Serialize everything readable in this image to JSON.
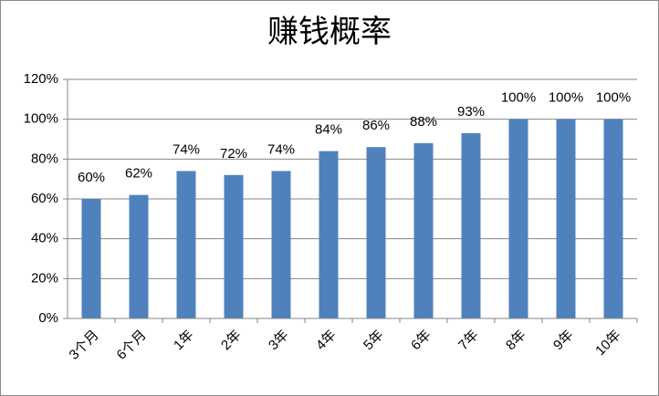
{
  "chart_data": {
    "type": "bar",
    "title": "赚钱概率",
    "categories": [
      "3个月",
      "6个月",
      "1年",
      "2年",
      "3年",
      "4年",
      "5年",
      "6年",
      "7年",
      "8年",
      "9年",
      "10年"
    ],
    "values": [
      60,
      62,
      74,
      72,
      74,
      84,
      86,
      88,
      93,
      100,
      100,
      100
    ],
    "value_labels": [
      "60%",
      "62%",
      "74%",
      "72%",
      "74%",
      "84%",
      "86%",
      "88%",
      "93%",
      "100%",
      "100%",
      "100%"
    ],
    "color": "#4f81bd",
    "ylim": [
      0,
      120
    ],
    "yticks": [
      {
        "value": 0,
        "label": "0%"
      },
      {
        "value": 20,
        "label": "20%"
      },
      {
        "value": 40,
        "label": "40%"
      },
      {
        "value": 60,
        "label": "60%"
      },
      {
        "value": 80,
        "label": "80%"
      },
      {
        "value": 100,
        "label": "100%"
      },
      {
        "value": 120,
        "label": "120%"
      }
    ],
    "grid": true
  }
}
